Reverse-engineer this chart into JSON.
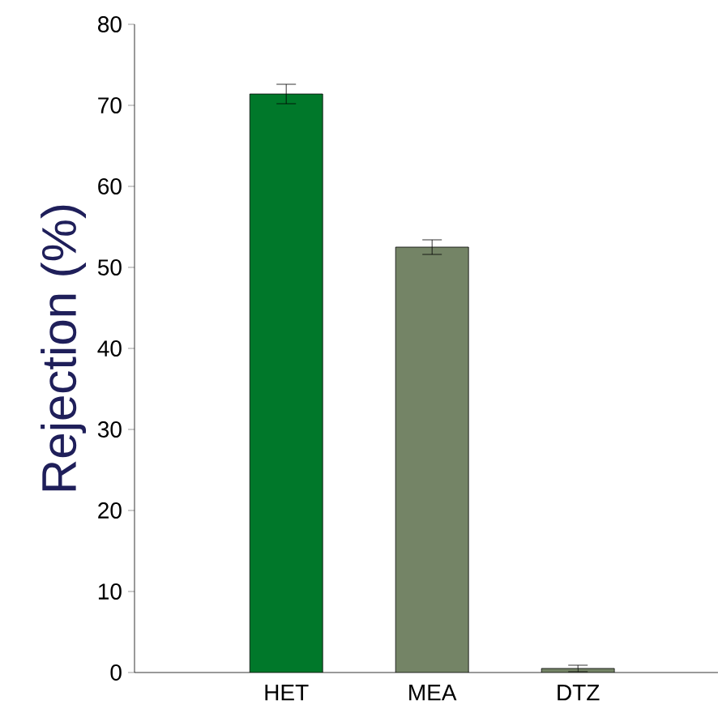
{
  "chart_data": {
    "type": "bar",
    "ylabel": "Rejection (%)",
    "categories": [
      "HET",
      "MEA",
      "DTZ"
    ],
    "values": [
      71.4,
      52.5,
      0.5
    ],
    "errors": [
      1.2,
      0.9,
      0.4
    ],
    "colors": [
      "#00782a",
      "#748466",
      "#748466"
    ],
    "ylim": [
      0,
      80
    ],
    "yticks": [
      0,
      10,
      20,
      30,
      40,
      50,
      60,
      70,
      80
    ],
    "grid": false
  }
}
